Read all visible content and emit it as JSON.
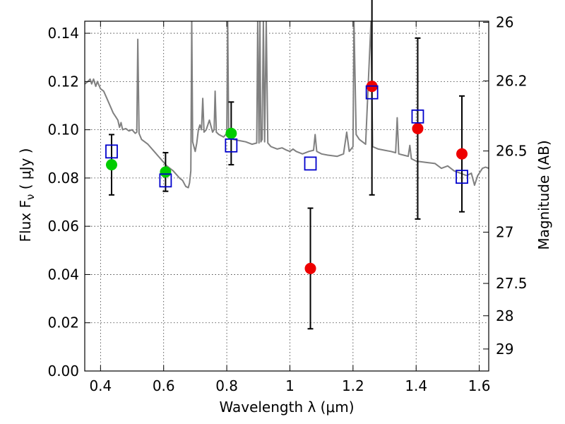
{
  "chart_data": {
    "type": "scatter",
    "xlabel": "Wavelength  λ (μm)",
    "ylabel": "Flux  F_ν  ( μJy )",
    "y2label": "Magnitude (AB)",
    "xlim": [
      0.35,
      1.63
    ],
    "ylim": [
      0.0,
      0.145
    ],
    "grid": true,
    "x_ticks": [
      {
        "v": 0.4,
        "label": "0.4"
      },
      {
        "v": 0.6,
        "label": "0.6"
      },
      {
        "v": 0.8,
        "label": "0.8"
      },
      {
        "v": 1.0,
        "label": "1"
      },
      {
        "v": 1.2,
        "label": "1.2"
      },
      {
        "v": 1.4,
        "label": "1.4"
      },
      {
        "v": 1.6,
        "label": "1.6"
      }
    ],
    "y_ticks": [
      {
        "v": 0.0,
        "label": "0.00"
      },
      {
        "v": 0.02,
        "label": "0.02"
      },
      {
        "v": 0.04,
        "label": "0.04"
      },
      {
        "v": 0.06,
        "label": "0.06"
      },
      {
        "v": 0.08,
        "label": "0.08"
      },
      {
        "v": 0.1,
        "label": "0.10"
      },
      {
        "v": 0.12,
        "label": "0.12"
      },
      {
        "v": 0.14,
        "label": "0.14"
      }
    ],
    "y2_ticks": [
      {
        "mag": 26,
        "label": "26"
      },
      {
        "mag": 26.2,
        "label": "26.2"
      },
      {
        "mag": 26.5,
        "label": "26.5"
      },
      {
        "mag": 27,
        "label": "27"
      },
      {
        "mag": 27.5,
        "label": "27.5"
      },
      {
        "mag": 28,
        "label": "28"
      },
      {
        "mag": 29,
        "label": "29"
      }
    ],
    "observed": [
      {
        "x": 0.435,
        "y": 0.0855,
        "err": 0.0125,
        "color": "#00cc00"
      },
      {
        "x": 0.606,
        "y": 0.0825,
        "err": 0.008,
        "color": "#00cc00"
      },
      {
        "x": 0.814,
        "y": 0.0985,
        "err": 0.013,
        "color": "#00cc00"
      },
      {
        "x": 1.065,
        "y": 0.0425,
        "err": 0.025,
        "color": "#ee0000"
      },
      {
        "x": 1.26,
        "y": 0.118,
        "err": 0.045,
        "color": "#ee0000"
      },
      {
        "x": 1.405,
        "y": 0.1005,
        "err": 0.0375,
        "color": "#ee0000"
      },
      {
        "x": 1.545,
        "y": 0.09,
        "err": 0.024,
        "color": "#ee0000"
      }
    ],
    "model_photometry": [
      {
        "x": 0.435,
        "y": 0.091
      },
      {
        "x": 0.606,
        "y": 0.079
      },
      {
        "x": 0.814,
        "y": 0.0935
      },
      {
        "x": 1.065,
        "y": 0.086
      },
      {
        "x": 1.26,
        "y": 0.1155
      },
      {
        "x": 1.405,
        "y": 0.1055
      },
      {
        "x": 1.545,
        "y": 0.0805
      }
    ],
    "model_spectrum": [
      [
        0.35,
        0.119
      ],
      [
        0.36,
        0.12
      ],
      [
        0.367,
        0.121
      ],
      [
        0.372,
        0.119
      ],
      [
        0.378,
        0.121
      ],
      [
        0.385,
        0.118
      ],
      [
        0.39,
        0.12
      ],
      [
        0.4,
        0.117
      ],
      [
        0.41,
        0.116
      ],
      [
        0.42,
        0.113
      ],
      [
        0.43,
        0.11
      ],
      [
        0.44,
        0.107
      ],
      [
        0.45,
        0.105
      ],
      [
        0.455,
        0.104
      ],
      [
        0.46,
        0.101
      ],
      [
        0.465,
        0.103
      ],
      [
        0.47,
        0.1
      ],
      [
        0.48,
        0.1005
      ],
      [
        0.49,
        0.0995
      ],
      [
        0.5,
        0.1
      ],
      [
        0.51,
        0.0985
      ],
      [
        0.515,
        0.099
      ],
      [
        0.518,
        0.1375
      ],
      [
        0.522,
        0.0985
      ],
      [
        0.53,
        0.096
      ],
      [
        0.55,
        0.094
      ],
      [
        0.57,
        0.091
      ],
      [
        0.59,
        0.088
      ],
      [
        0.61,
        0.085
      ],
      [
        0.63,
        0.083
      ],
      [
        0.65,
        0.08
      ],
      [
        0.66,
        0.079
      ],
      [
        0.67,
        0.0765
      ],
      [
        0.678,
        0.076
      ],
      [
        0.682,
        0.078
      ],
      [
        0.686,
        0.083
      ],
      [
        0.689,
        0.145
      ],
      [
        0.692,
        0.095
      ],
      [
        0.7,
        0.091
      ],
      [
        0.705,
        0.0945
      ],
      [
        0.71,
        0.1
      ],
      [
        0.715,
        0.102
      ],
      [
        0.72,
        0.1
      ],
      [
        0.724,
        0.113
      ],
      [
        0.728,
        0.099
      ],
      [
        0.735,
        0.1
      ],
      [
        0.745,
        0.104
      ],
      [
        0.755,
        0.099
      ],
      [
        0.76,
        0.1
      ],
      [
        0.763,
        0.116
      ],
      [
        0.767,
        0.099
      ],
      [
        0.775,
        0.098
      ],
      [
        0.79,
        0.097
      ],
      [
        0.8,
        0.0985
      ],
      [
        0.803,
        0.145
      ],
      [
        0.806,
        0.098
      ],
      [
        0.82,
        0.096
      ],
      [
        0.84,
        0.0955
      ],
      [
        0.86,
        0.095
      ],
      [
        0.88,
        0.094
      ],
      [
        0.895,
        0.0945
      ],
      [
        0.898,
        0.145
      ],
      [
        0.902,
        0.0945
      ],
      [
        0.905,
        0.145
      ],
      [
        0.908,
        0.095
      ],
      [
        0.912,
        0.096
      ],
      [
        0.916,
        0.145
      ],
      [
        0.92,
        0.095
      ],
      [
        0.925,
        0.145
      ],
      [
        0.93,
        0.0945
      ],
      [
        0.94,
        0.093
      ],
      [
        0.95,
        0.0925
      ],
      [
        0.96,
        0.092
      ],
      [
        0.975,
        0.0925
      ],
      [
        0.99,
        0.0915
      ],
      [
        1.0,
        0.091
      ],
      [
        1.01,
        0.092
      ],
      [
        1.02,
        0.091
      ],
      [
        1.04,
        0.09
      ],
      [
        1.06,
        0.091
      ],
      [
        1.075,
        0.0915
      ],
      [
        1.08,
        0.098
      ],
      [
        1.085,
        0.091
      ],
      [
        1.1,
        0.09
      ],
      [
        1.12,
        0.0895
      ],
      [
        1.15,
        0.089
      ],
      [
        1.17,
        0.09
      ],
      [
        1.18,
        0.099
      ],
      [
        1.188,
        0.091
      ],
      [
        1.2,
        0.093
      ],
      [
        1.203,
        0.145
      ],
      [
        1.21,
        0.098
      ],
      [
        1.22,
        0.096
      ],
      [
        1.24,
        0.094
      ],
      [
        1.257,
        0.145
      ],
      [
        1.262,
        0.093
      ],
      [
        1.28,
        0.092
      ],
      [
        1.3,
        0.0915
      ],
      [
        1.32,
        0.091
      ],
      [
        1.335,
        0.0905
      ],
      [
        1.34,
        0.105
      ],
      [
        1.345,
        0.09
      ],
      [
        1.36,
        0.0895
      ],
      [
        1.375,
        0.089
      ],
      [
        1.38,
        0.0935
      ],
      [
        1.385,
        0.088
      ],
      [
        1.4,
        0.087
      ],
      [
        1.43,
        0.0865
      ],
      [
        1.46,
        0.086
      ],
      [
        1.48,
        0.084
      ],
      [
        1.5,
        0.085
      ],
      [
        1.52,
        0.083
      ],
      [
        1.54,
        0.082
      ],
      [
        1.56,
        0.081
      ],
      [
        1.575,
        0.082
      ],
      [
        1.585,
        0.077
      ],
      [
        1.595,
        0.081
      ],
      [
        1.61,
        0.084
      ],
      [
        1.62,
        0.0845
      ],
      [
        1.63,
        0.084
      ]
    ],
    "colors": {
      "spectrum": "#808080",
      "model_marker": "#0000cc",
      "errorbar": "#000000"
    }
  }
}
